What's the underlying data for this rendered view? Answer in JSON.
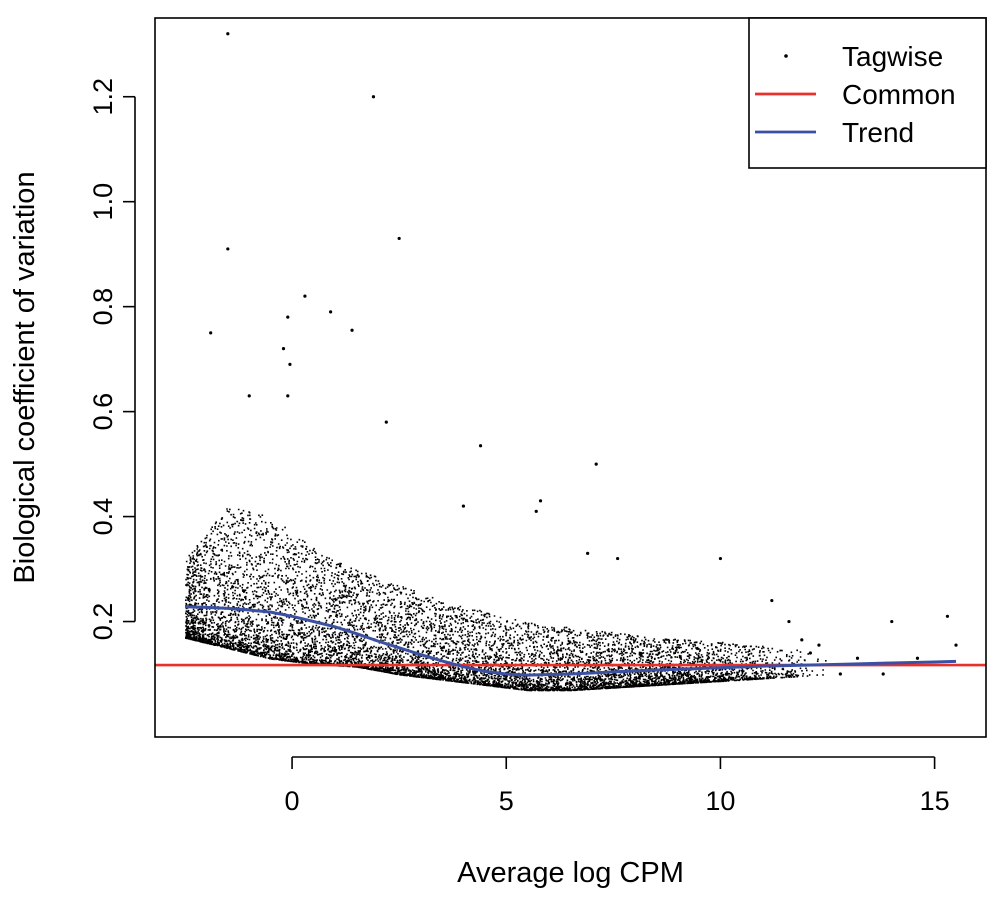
{
  "chart_data": {
    "type": "scatter",
    "xlabel": "Average log CPM",
    "ylabel": "Biological coefficient of variation",
    "xlim": [
      -3.2,
      16.2
    ],
    "ylim": [
      -0.02,
      1.35
    ],
    "xticks": [
      0,
      5,
      10,
      15
    ],
    "yticks": [
      0.2,
      0.4,
      0.6,
      0.8,
      1.0,
      1.2
    ],
    "xtick_labels": [
      "0",
      "5",
      "10",
      "15"
    ],
    "ytick_labels": [
      "0.2",
      "0.4",
      "0.6",
      "0.8",
      "1.0",
      "1.2"
    ],
    "grid": false,
    "legend_position": "top-right",
    "series": [
      {
        "name": "Tagwise",
        "kind": "points",
        "color": "#000000",
        "outliers": [
          [
            -1.5,
            1.32
          ],
          [
            1.9,
            1.2
          ],
          [
            -1.5,
            0.91
          ],
          [
            2.5,
            0.93
          ],
          [
            0.3,
            0.82
          ],
          [
            -0.1,
            0.78
          ],
          [
            0.9,
            0.79
          ],
          [
            -1.9,
            0.75
          ],
          [
            1.4,
            0.755
          ],
          [
            -0.2,
            0.72
          ],
          [
            -0.05,
            0.69
          ],
          [
            -0.1,
            0.63
          ],
          [
            -1.0,
            0.63
          ],
          [
            2.2,
            0.58
          ],
          [
            4.4,
            0.535
          ],
          [
            7.1,
            0.5
          ],
          [
            5.8,
            0.43
          ],
          [
            5.7,
            0.41
          ],
          [
            4.0,
            0.42
          ],
          [
            6.9,
            0.33
          ],
          [
            10.0,
            0.32
          ],
          [
            7.6,
            0.32
          ],
          [
            11.2,
            0.24
          ],
          [
            11.6,
            0.2
          ],
          [
            14.0,
            0.2
          ],
          [
            15.3,
            0.21
          ],
          [
            15.5,
            0.155
          ],
          [
            12.3,
            0.155
          ],
          [
            14.6,
            0.13
          ],
          [
            13.8,
            0.1
          ],
          [
            12.1,
            0.14
          ],
          [
            11.9,
            0.165
          ],
          [
            13.2,
            0.13
          ],
          [
            12.8,
            0.1
          ]
        ],
        "bulk_envelope": [
          {
            "x": -2.5,
            "y_low": 0.17,
            "y_high": 0.32
          },
          {
            "x": -1.5,
            "y_low": 0.15,
            "y_high": 0.42
          },
          {
            "x": -0.5,
            "y_low": 0.13,
            "y_high": 0.4
          },
          {
            "x": 0.5,
            "y_low": 0.12,
            "y_high": 0.34
          },
          {
            "x": 1.5,
            "y_low": 0.115,
            "y_high": 0.3
          },
          {
            "x": 2.5,
            "y_low": 0.1,
            "y_high": 0.27
          },
          {
            "x": 3.5,
            "y_low": 0.09,
            "y_high": 0.24
          },
          {
            "x": 4.5,
            "y_low": 0.08,
            "y_high": 0.22
          },
          {
            "x": 5.5,
            "y_low": 0.07,
            "y_high": 0.2
          },
          {
            "x": 6.5,
            "y_low": 0.07,
            "y_high": 0.19
          },
          {
            "x": 7.5,
            "y_low": 0.075,
            "y_high": 0.18
          },
          {
            "x": 8.5,
            "y_low": 0.08,
            "y_high": 0.17
          },
          {
            "x": 9.5,
            "y_low": 0.085,
            "y_high": 0.165
          },
          {
            "x": 10.5,
            "y_low": 0.09,
            "y_high": 0.16
          },
          {
            "x": 11.5,
            "y_low": 0.095,
            "y_high": 0.15
          },
          {
            "x": 12.5,
            "y_low": 0.1,
            "y_high": 0.14
          }
        ]
      },
      {
        "name": "Common",
        "kind": "hline",
        "color": "#e8312b",
        "y": 0.117
      },
      {
        "name": "Trend",
        "kind": "line",
        "color": "#3b4fa3",
        "x": [
          -2.5,
          -2.0,
          -1.5,
          -1.0,
          -0.5,
          0.0,
          0.5,
          1.0,
          1.5,
          2.0,
          2.5,
          3.0,
          3.5,
          4.0,
          4.5,
          5.0,
          5.5,
          6.0,
          6.5,
          7.0,
          7.5,
          8.0,
          9.0,
          10.0,
          11.0,
          12.0,
          13.0,
          14.0,
          15.0,
          15.5
        ],
        "y": [
          0.228,
          0.227,
          0.225,
          0.222,
          0.218,
          0.21,
          0.2,
          0.19,
          0.177,
          0.163,
          0.15,
          0.137,
          0.125,
          0.114,
          0.105,
          0.1,
          0.098,
          0.099,
          0.1,
          0.102,
          0.104,
          0.106,
          0.109,
          0.112,
          0.115,
          0.117,
          0.119,
          0.121,
          0.123,
          0.124
        ]
      }
    ]
  }
}
